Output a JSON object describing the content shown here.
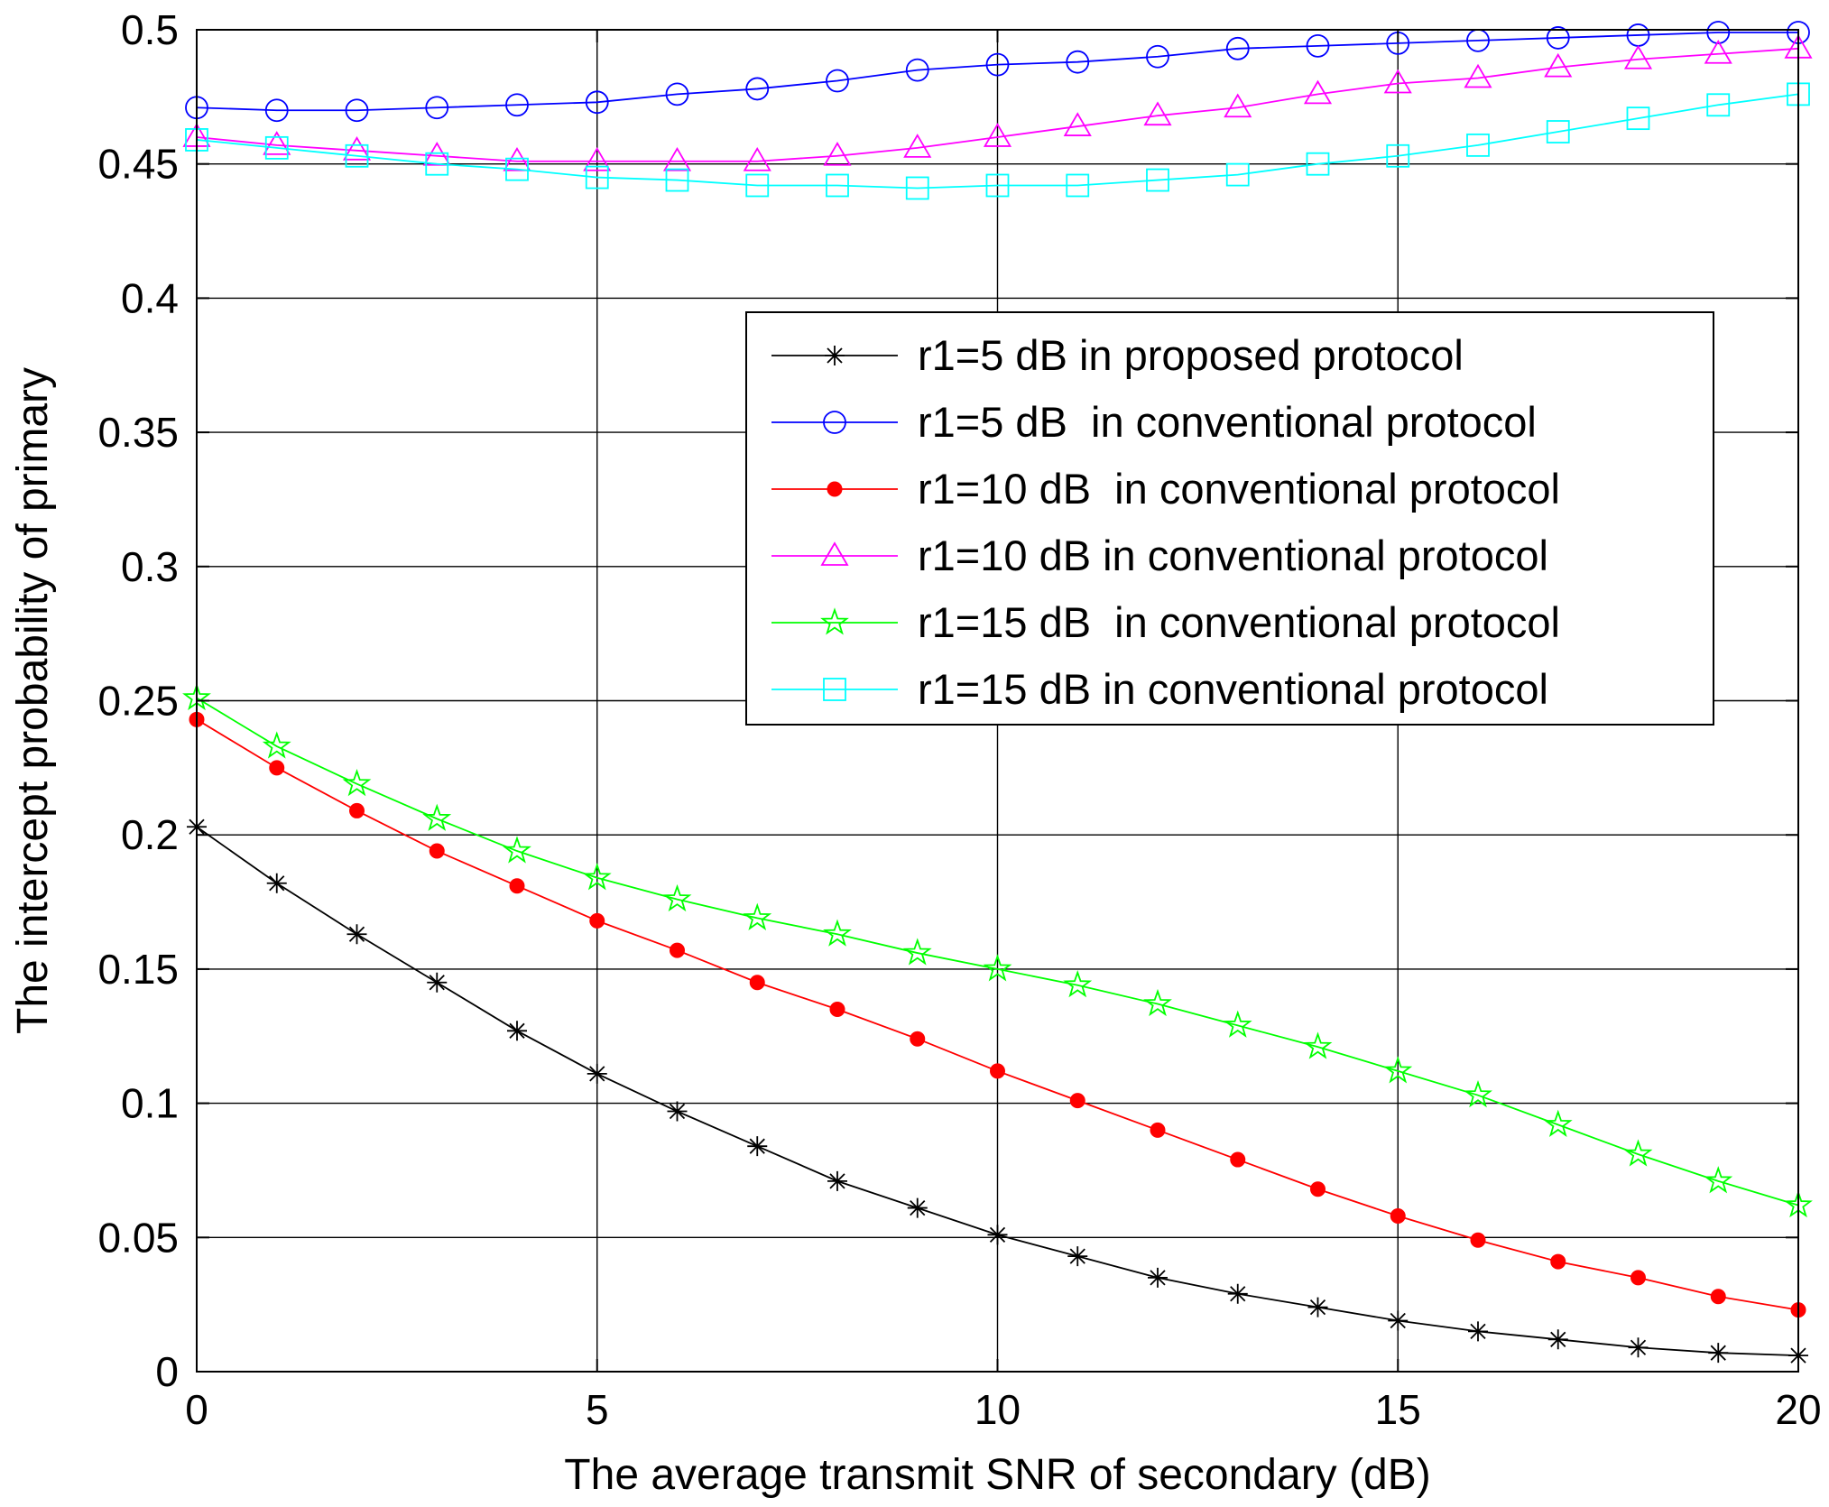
{
  "chart_data": {
    "type": "line",
    "title": "",
    "xlabel": "The average transmit SNR of secondary (dB)",
    "ylabel": "The intercept probability of primary",
    "xlim": [
      0,
      20
    ],
    "ylim": [
      0,
      0.5
    ],
    "xticks": [
      0,
      5,
      10,
      15,
      20
    ],
    "yticks": [
      0,
      0.05,
      0.1,
      0.15,
      0.2,
      0.25,
      0.3,
      0.35,
      0.4,
      0.45,
      0.5
    ],
    "xtick_labels": [
      "0",
      "5",
      "10",
      "15",
      "20"
    ],
    "ytick_labels": [
      "0",
      "0.05",
      "0.1",
      "0.15",
      "0.2",
      "0.25",
      "0.3",
      "0.35",
      "0.4",
      "0.45",
      "0.5"
    ],
    "grid": true,
    "legend_position": "upper-right",
    "x": [
      0,
      1,
      2,
      3,
      4,
      5,
      6,
      7,
      8,
      9,
      10,
      11,
      12,
      13,
      14,
      15,
      16,
      17,
      18,
      19,
      20
    ],
    "series": [
      {
        "name": "r1=5 dB in proposed protocol",
        "color": "#000000",
        "marker": "asterisk",
        "filled": false,
        "values": [
          0.203,
          0.182,
          0.163,
          0.145,
          0.127,
          0.111,
          0.097,
          0.084,
          0.071,
          0.061,
          0.051,
          0.043,
          0.035,
          0.029,
          0.024,
          0.019,
          0.015,
          0.012,
          0.009,
          0.007,
          0.006
        ]
      },
      {
        "name": "r1=5 dB  in conventional protocol",
        "color": "#0000ff",
        "marker": "circle",
        "filled": false,
        "values": [
          0.471,
          0.47,
          0.47,
          0.471,
          0.472,
          0.473,
          0.476,
          0.478,
          0.481,
          0.485,
          0.487,
          0.488,
          0.49,
          0.493,
          0.494,
          0.495,
          0.496,
          0.497,
          0.498,
          0.499,
          0.499
        ]
      },
      {
        "name": "r1=10 dB  in conventional protocol",
        "color": "#ff0000",
        "marker": "dot",
        "filled": true,
        "values": [
          0.243,
          0.225,
          0.209,
          0.194,
          0.181,
          0.168,
          0.157,
          0.145,
          0.135,
          0.124,
          0.112,
          0.101,
          0.09,
          0.079,
          0.068,
          0.058,
          0.049,
          0.041,
          0.035,
          0.028,
          0.023
        ]
      },
      {
        "name": "r1=10 dB in conventional protocol",
        "color": "#ff00ff",
        "marker": "triangle",
        "filled": false,
        "values": [
          0.46,
          0.457,
          0.455,
          0.453,
          0.451,
          0.451,
          0.451,
          0.451,
          0.453,
          0.456,
          0.46,
          0.464,
          0.468,
          0.471,
          0.476,
          0.48,
          0.482,
          0.486,
          0.489,
          0.491,
          0.493
        ]
      },
      {
        "name": "r1=15 dB  in conventional protocol",
        "color": "#00ff00",
        "marker": "star",
        "filled": false,
        "values": [
          0.251,
          0.233,
          0.219,
          0.206,
          0.194,
          0.184,
          0.176,
          0.169,
          0.163,
          0.156,
          0.15,
          0.144,
          0.137,
          0.129,
          0.121,
          0.112,
          0.103,
          0.092,
          0.081,
          0.071,
          0.062
        ]
      },
      {
        "name": "r1=15 dB in conventional protocol",
        "color": "#00ffff",
        "marker": "square",
        "filled": false,
        "values": [
          0.459,
          0.456,
          0.453,
          0.45,
          0.448,
          0.445,
          0.444,
          0.442,
          0.442,
          0.441,
          0.442,
          0.442,
          0.444,
          0.446,
          0.45,
          0.453,
          0.457,
          0.462,
          0.467,
          0.472,
          0.476
        ]
      }
    ]
  }
}
